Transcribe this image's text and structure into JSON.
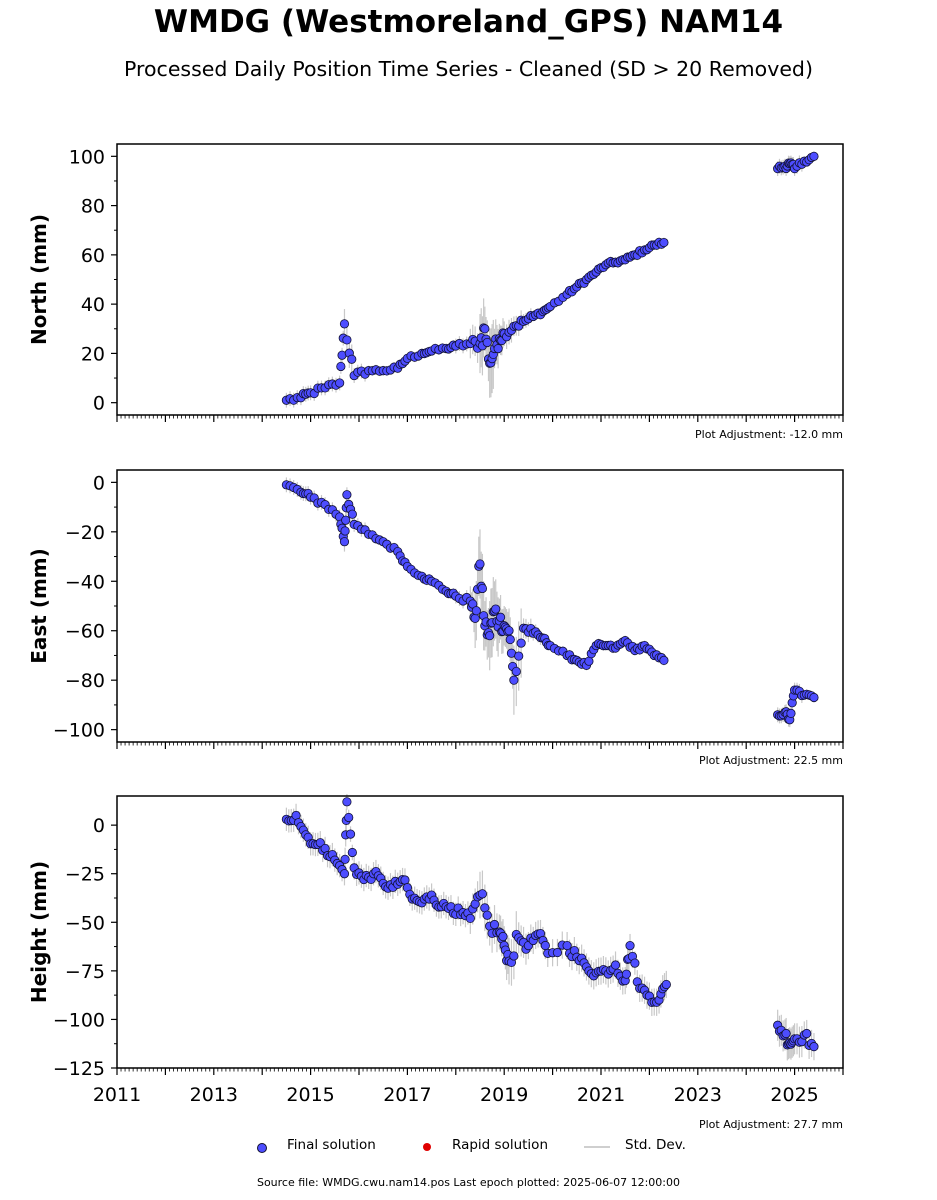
{
  "title": "WMDG (Westmoreland_GPS) NAM14",
  "subtitle": "Processed Daily Position Time Series - Cleaned (SD > 20 Removed)",
  "colors": {
    "final": "#4d4dff",
    "final_edge": "#111133",
    "rapid": "#e00000",
    "stddev": "#c8c8c8"
  },
  "legend": {
    "final": "Final solution",
    "rapid": "Rapid solution",
    "stddev": "Std. Dev."
  },
  "source_text": "Source file: WMDG.cwu.nam14.pos  Last epoch plotted: 2025-06-07 12:00:00",
  "chart_data": [
    {
      "type": "scatter",
      "ylabel": "North (mm)",
      "adjustment": "Plot Adjustment: -12.0 mm",
      "xlim": [
        2011.0,
        2026.0
      ],
      "ylim": [
        -5,
        105
      ],
      "yticks": [
        0,
        20,
        40,
        60,
        80,
        100
      ],
      "x_ticks_labeled": false,
      "series": [
        {
          "x": [
            2014.5,
            2014.8,
            2015.0,
            2015.3,
            2015.6,
            2015.7,
            2015.9,
            2016.2,
            2016.5,
            2016.8,
            2017.0,
            2017.3,
            2017.5,
            2017.8,
            2018.0,
            2018.3,
            2018.5,
            2018.6,
            2018.7,
            2018.8,
            2018.9,
            2019.0,
            2019.2,
            2019.4,
            2019.6,
            2019.8,
            2019.95,
            2020.3,
            2020.5,
            2020.7,
            2020.9,
            2021.1,
            2021.3,
            2021.5,
            2021.7,
            2021.9,
            2022.1,
            2022.3,
            2024.65,
            2024.8,
            2024.9,
            2025.0,
            2025.2,
            2025.4
          ],
          "y": [
            1,
            2,
            4,
            6,
            8,
            32,
            11,
            13,
            13,
            14,
            18,
            20,
            21,
            22,
            23,
            24,
            24,
            30,
            16,
            22,
            26,
            28,
            31,
            33,
            35,
            37,
            39,
            44,
            47,
            50,
            53,
            56,
            57,
            58,
            60,
            62,
            64,
            65,
            95,
            96,
            97,
            95,
            98,
            100
          ],
          "err": [
            3,
            3,
            3,
            3,
            3,
            6,
            3,
            2,
            2,
            2,
            2,
            2,
            2,
            2,
            3,
            6,
            12,
            9,
            14,
            8,
            6,
            5,
            4,
            3,
            2,
            2,
            2,
            2,
            2,
            2,
            2,
            2,
            2,
            2,
            2,
            2,
            2,
            2,
            3,
            3,
            3,
            3,
            2,
            2
          ]
        }
      ]
    },
    {
      "type": "scatter",
      "ylabel": "East (mm)",
      "adjustment": "Plot Adjustment: 22.5 mm",
      "xlim": [
        2011.0,
        2026.0
      ],
      "ylim": [
        -105,
        5
      ],
      "yticks": [
        0,
        -20,
        -40,
        -60,
        -80,
        -100
      ],
      "x_ticks_labeled": false,
      "series": [
        {
          "x": [
            2014.5,
            2014.8,
            2015.0,
            2015.3,
            2015.6,
            2015.7,
            2015.75,
            2015.9,
            2016.2,
            2016.5,
            2016.8,
            2017.0,
            2017.3,
            2017.5,
            2017.8,
            2018.0,
            2018.3,
            2018.4,
            2018.5,
            2018.6,
            2018.7,
            2018.8,
            2018.9,
            2019.0,
            2019.1,
            2019.2,
            2019.4,
            2019.6,
            2019.8,
            2019.95,
            2020.3,
            2020.5,
            2020.7,
            2020.9,
            2021.1,
            2021.3,
            2021.5,
            2021.7,
            2021.9,
            2022.1,
            2022.3,
            2024.65,
            2024.8,
            2024.9,
            2025.0,
            2025.2,
            2025.4
          ],
          "y": [
            -1,
            -4,
            -6,
            -9,
            -14,
            -24,
            -5,
            -17,
            -21,
            -24,
            -28,
            -34,
            -38,
            -40,
            -44,
            -46,
            -48,
            -55,
            -33,
            -58,
            -62,
            -52,
            -56,
            -58,
            -60,
            -80,
            -59,
            -61,
            -63,
            -66,
            -70,
            -72,
            -74,
            -66,
            -66,
            -67,
            -64,
            -68,
            -66,
            -70,
            -72,
            -94,
            -93,
            -96,
            -84,
            -86,
            -87
          ],
          "err": [
            3,
            3,
            3,
            3,
            3,
            4,
            3,
            3,
            2,
            2,
            2,
            2,
            2,
            2,
            2,
            3,
            6,
            12,
            14,
            10,
            14,
            12,
            9,
            8,
            9,
            14,
            4,
            3,
            2,
            2,
            2,
            2,
            2,
            2,
            2,
            2,
            2,
            2,
            2,
            2,
            2,
            3,
            3,
            3,
            3,
            2,
            2
          ]
        }
      ]
    },
    {
      "type": "scatter",
      "ylabel": "Height (mm)",
      "adjustment": "Plot Adjustment: 27.7 mm",
      "xlim": [
        2011.0,
        2026.0
      ],
      "ylim": [
        -125,
        15
      ],
      "yticks": [
        0,
        -25,
        -50,
        -75,
        -100,
        -125
      ],
      "xticks": [
        2011,
        2013,
        2015,
        2017,
        2019,
        2021,
        2023,
        2025
      ],
      "x_ticks_labeled": true,
      "series": [
        {
          "x": [
            2014.5,
            2014.7,
            2014.9,
            2015.1,
            2015.3,
            2015.5,
            2015.7,
            2015.75,
            2015.9,
            2016.1,
            2016.3,
            2016.5,
            2016.7,
            2016.9,
            2017.1,
            2017.3,
            2017.5,
            2017.7,
            2017.9,
            2018.1,
            2018.3,
            2018.5,
            2018.7,
            2018.9,
            2019.0,
            2019.1,
            2019.3,
            2019.5,
            2019.7,
            2019.9,
            2020.3,
            2020.5,
            2020.7,
            2020.9,
            2021.1,
            2021.3,
            2021.5,
            2021.6,
            2021.8,
            2022.0,
            2022.2,
            2022.35,
            2024.65,
            2024.8,
            2024.9,
            2025.0,
            2025.2,
            2025.4
          ],
          "y": [
            3,
            5,
            -5,
            -10,
            -12,
            -18,
            -25,
            12,
            -22,
            -28,
            -25,
            -30,
            -32,
            -28,
            -38,
            -40,
            -36,
            -42,
            -42,
            -46,
            -48,
            -36,
            -52,
            -55,
            -62,
            -70,
            -58,
            -62,
            -56,
            -66,
            -62,
            -68,
            -73,
            -76,
            -75,
            -72,
            -80,
            -62,
            -84,
            -88,
            -90,
            -82,
            -103,
            -108,
            -112,
            -110,
            -108,
            -114
          ],
          "err": [
            6,
            6,
            6,
            6,
            6,
            6,
            6,
            4,
            6,
            6,
            6,
            6,
            6,
            6,
            6,
            6,
            6,
            6,
            6,
            6,
            8,
            12,
            10,
            9,
            10,
            12,
            8,
            7,
            7,
            7,
            7,
            7,
            7,
            7,
            7,
            7,
            7,
            6,
            7,
            7,
            7,
            7,
            8,
            8,
            8,
            8,
            7,
            7
          ]
        }
      ]
    }
  ]
}
